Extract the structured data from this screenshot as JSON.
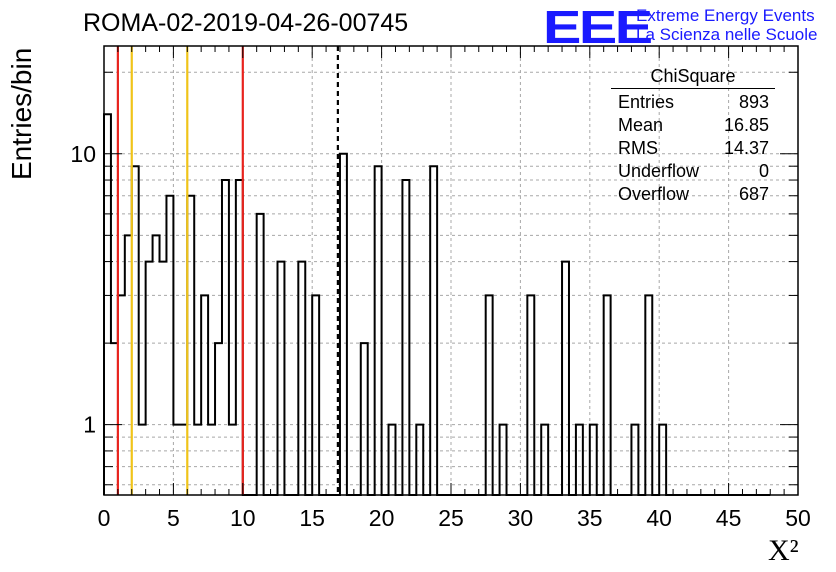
{
  "header": {
    "title": "ROMA-02-2019-04-26-00745",
    "logo": "EEE",
    "logo_line1": "Extreme Energy Events",
    "logo_line2": "La Scienza nelle Scuole"
  },
  "stats_box": {
    "title": "ChiSquare",
    "rows": [
      {
        "label": "Entries",
        "value": "893"
      },
      {
        "label": "Mean",
        "value": "16.85"
      },
      {
        "label": "RMS",
        "value": "14.37"
      },
      {
        "label": "Underflow",
        "value": "0"
      },
      {
        "label": "Overflow",
        "value": "687"
      }
    ]
  },
  "chart_data": {
    "type": "bar",
    "subtype": "step-histogram",
    "title": "ROMA-02-2019-04-26-00745",
    "xlabel": "X²",
    "ylabel": "Entries/bin",
    "xlim": [
      0,
      50
    ],
    "ylim": [
      0.55,
      25
    ],
    "yscale": "log",
    "grid": true,
    "bin_width": 0.5,
    "x_ticks": [
      0,
      5,
      10,
      15,
      20,
      25,
      30,
      35,
      40,
      45,
      50
    ],
    "y_ticks": [
      1,
      10
    ],
    "values": [
      14,
      2,
      3,
      5,
      9,
      1,
      4,
      5,
      4,
      7,
      1,
      1,
      7,
      1,
      3,
      1,
      2,
      8,
      1,
      8,
      0,
      0,
      6,
      0,
      0,
      4,
      0,
      0,
      4,
      0,
      3,
      0,
      0,
      0,
      10,
      0,
      0,
      2,
      0,
      9,
      0,
      1,
      0,
      8,
      0,
      1,
      0,
      9,
      0,
      0,
      0,
      0,
      0,
      0,
      0,
      3,
      0,
      1,
      0,
      0,
      0,
      3,
      0,
      1,
      0,
      0,
      4,
      0,
      1,
      0,
      1,
      0,
      3,
      0,
      0,
      0,
      1,
      0,
      3,
      0,
      1,
      0,
      0,
      0,
      0,
      0,
      0,
      0,
      0,
      0,
      0,
      0,
      0,
      0,
      0,
      0
    ],
    "vlines": [
      {
        "x": 1,
        "color": "#e8231d",
        "style": "solid"
      },
      {
        "x": 2,
        "color": "#f0c419",
        "style": "solid"
      },
      {
        "x": 6,
        "color": "#f0c419",
        "style": "solid"
      },
      {
        "x": 10,
        "color": "#e8231d",
        "style": "solid"
      },
      {
        "x": 16.85,
        "color": "#000000",
        "style": "dashed"
      }
    ]
  }
}
